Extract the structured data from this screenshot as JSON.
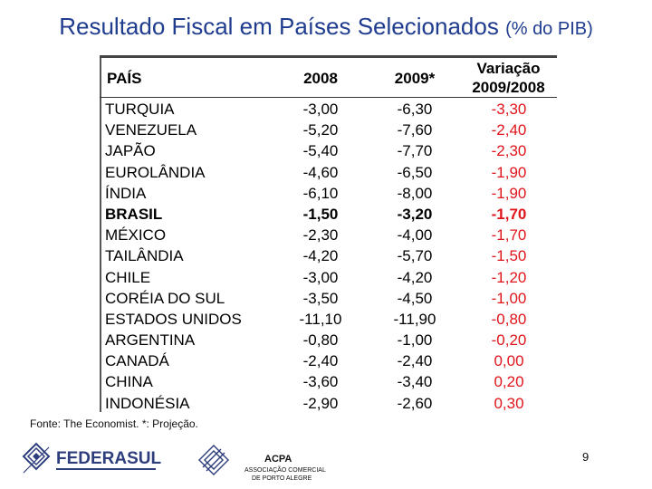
{
  "title": {
    "main": "Resultado Fiscal em Países Selecionados",
    "suffix": "(% do PIB)"
  },
  "table": {
    "headers": {
      "country": "PAÍS",
      "y2008": "2008",
      "y2009": "2009*",
      "variation_line1": "Variação",
      "variation_line2": "2009/2008"
    },
    "rows": [
      {
        "country": "TURQUIA",
        "y2008": "-3,00",
        "y2009": "-6,30",
        "variation": "-3,30",
        "bold": false
      },
      {
        "country": "VENEZUELA",
        "y2008": "-5,20",
        "y2009": "-7,60",
        "variation": "-2,40",
        "bold": false
      },
      {
        "country": "JAPÃO",
        "y2008": "-5,40",
        "y2009": "-7,70",
        "variation": "-2,30",
        "bold": false
      },
      {
        "country": "EUROLÂNDIA",
        "y2008": "-4,60",
        "y2009": "-6,50",
        "variation": "-1,90",
        "bold": false
      },
      {
        "country": "ÍNDIA",
        "y2008": "-6,10",
        "y2009": "-8,00",
        "variation": "-1,90",
        "bold": false
      },
      {
        "country": "BRASIL",
        "y2008": "-1,50",
        "y2009": "-3,20",
        "variation": "-1,70",
        "bold": true
      },
      {
        "country": "MÉXICO",
        "y2008": "-2,30",
        "y2009": "-4,00",
        "variation": "-1,70",
        "bold": false
      },
      {
        "country": "TAILÂNDIA",
        "y2008": "-4,20",
        "y2009": "-5,70",
        "variation": "-1,50",
        "bold": false
      },
      {
        "country": "CHILE",
        "y2008": "-3,00",
        "y2009": "-4,20",
        "variation": "-1,20",
        "bold": false
      },
      {
        "country": "CORÉIA DO SUL",
        "y2008": "-3,50",
        "y2009": "-4,50",
        "variation": "-1,00",
        "bold": false
      },
      {
        "country": "ESTADOS UNIDOS",
        "y2008": "-11,10",
        "y2009": "-11,90",
        "variation": "-0,80",
        "bold": false
      },
      {
        "country": "ARGENTINA",
        "y2008": "-0,80",
        "y2009": "-1,00",
        "variation": "-0,20",
        "bold": false
      },
      {
        "country": "CANADÁ",
        "y2008": "-2,40",
        "y2009": "-2,40",
        "variation": "0,00",
        "bold": false
      },
      {
        "country": "CHINA",
        "y2008": "-3,60",
        "y2009": "-3,40",
        "variation": "0,20",
        "bold": false
      },
      {
        "country": "INDONÉSIA",
        "y2008": "-2,90",
        "y2009": "-2,60",
        "variation": "0,30",
        "bold": false
      }
    ]
  },
  "source_note": "Fonte: The Economist. *: Projeção.",
  "logos": {
    "federasul": "FEDERASUL",
    "acpa": "ACPA",
    "acpa_line1": "ASSOCIAÇÃO COMERCIAL",
    "acpa_line2": "DE PORTO ALEGRE"
  },
  "page_number": "9",
  "colors": {
    "title": "#1f3c8f",
    "variation": "#e0151b",
    "federasul_logo": "#2e3d7c"
  }
}
